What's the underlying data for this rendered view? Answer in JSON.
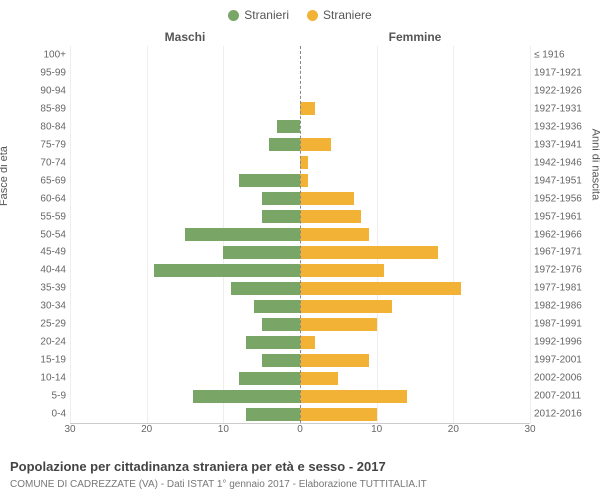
{
  "legend": {
    "male": {
      "label": "Stranieri",
      "color": "#79a667"
    },
    "female": {
      "label": "Straniere",
      "color": "#f2b236"
    }
  },
  "section_labels": {
    "male": "Maschi",
    "female": "Femmine"
  },
  "y_title_left": "Fasce di età",
  "y_title_right": "Anni di nascita",
  "chart": {
    "type": "population-pyramid",
    "x_max": 30,
    "x_ticks": [
      30,
      20,
      10,
      0,
      10,
      20,
      30
    ],
    "background_color": "#ffffff",
    "grid_color": "#eeeeee",
    "bar_color_male": "#79a667",
    "bar_color_female": "#f2b236",
    "rows": [
      {
        "age": "100+",
        "birth": "≤ 1916",
        "m": 0,
        "f": 0
      },
      {
        "age": "95-99",
        "birth": "1917-1921",
        "m": 0,
        "f": 0
      },
      {
        "age": "90-94",
        "birth": "1922-1926",
        "m": 0,
        "f": 0
      },
      {
        "age": "85-89",
        "birth": "1927-1931",
        "m": 0,
        "f": 2
      },
      {
        "age": "80-84",
        "birth": "1932-1936",
        "m": 3,
        "f": 0
      },
      {
        "age": "75-79",
        "birth": "1937-1941",
        "m": 4,
        "f": 4
      },
      {
        "age": "70-74",
        "birth": "1942-1946",
        "m": 0,
        "f": 1
      },
      {
        "age": "65-69",
        "birth": "1947-1951",
        "m": 8,
        "f": 1
      },
      {
        "age": "60-64",
        "birth": "1952-1956",
        "m": 5,
        "f": 7
      },
      {
        "age": "55-59",
        "birth": "1957-1961",
        "m": 5,
        "f": 8
      },
      {
        "age": "50-54",
        "birth": "1962-1966",
        "m": 15,
        "f": 9
      },
      {
        "age": "45-49",
        "birth": "1967-1971",
        "m": 10,
        "f": 18
      },
      {
        "age": "40-44",
        "birth": "1972-1976",
        "m": 19,
        "f": 11
      },
      {
        "age": "35-39",
        "birth": "1977-1981",
        "m": 9,
        "f": 21
      },
      {
        "age": "30-34",
        "birth": "1982-1986",
        "m": 6,
        "f": 12
      },
      {
        "age": "25-29",
        "birth": "1987-1991",
        "m": 5,
        "f": 10
      },
      {
        "age": "20-24",
        "birth": "1992-1996",
        "m": 7,
        "f": 2
      },
      {
        "age": "15-19",
        "birth": "1997-2001",
        "m": 5,
        "f": 9
      },
      {
        "age": "10-14",
        "birth": "2002-2006",
        "m": 8,
        "f": 5
      },
      {
        "age": "5-9",
        "birth": "2007-2011",
        "m": 14,
        "f": 14
      },
      {
        "age": "0-4",
        "birth": "2012-2016",
        "m": 7,
        "f": 10
      }
    ]
  },
  "footer": "Popolazione per cittadinanza straniera per età e sesso - 2017",
  "subfooter": "COMUNE DI CADREZZATE (VA) - Dati ISTAT 1° gennaio 2017 - Elaborazione TUTTITALIA.IT"
}
